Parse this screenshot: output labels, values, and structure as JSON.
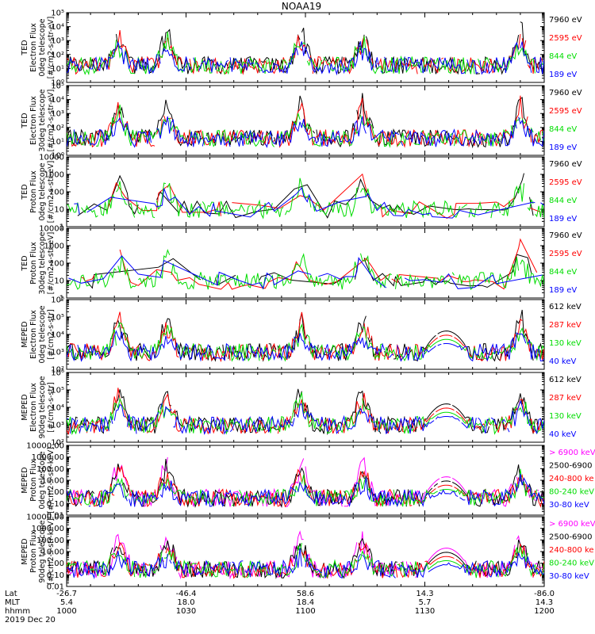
{
  "chart_data": {
    "title": "NOAA19",
    "type": "line",
    "footer": {
      "rows": [
        {
          "label": "Lat",
          "values": [
            "-26.7",
            "-46.4",
            "58.6",
            "14.3",
            "-86.0"
          ]
        },
        {
          "label": "MLT",
          "values": [
            "5.4",
            "18.0",
            "18.4",
            "5.7",
            "14.3"
          ]
        },
        {
          "label": "hhmm",
          "values": [
            "1000",
            "1030",
            "1100",
            "1130",
            "1200"
          ]
        }
      ],
      "date": "2019 Dec 20"
    },
    "panels": [
      {
        "ylabel": [
          "TED",
          "Electron Flux",
          "0deg telescope",
          "[#/cm2-s-str-eV]"
        ],
        "scale": "log",
        "ylim": [
          1,
          100000
        ],
        "ticks": [
          "10⁰",
          "10¹",
          "10²",
          "10³",
          "10⁴",
          "10⁵"
        ],
        "legend": [
          {
            "label": "7960 eV",
            "color": "#000000"
          },
          {
            "label": "2595 eV",
            "color": "#ff0000"
          },
          {
            "label": "844 eV",
            "color": "#00dd00"
          },
          {
            "label": "189 eV",
            "color": "#0000ff"
          }
        ]
      },
      {
        "ylabel": [
          "TED",
          "Electron Flux",
          "30deg telescope",
          "[#/cm2-s-str-eV]"
        ],
        "scale": "log",
        "ylim": [
          1,
          100000
        ],
        "ticks": [
          "10⁰",
          "10¹",
          "10²",
          "10³",
          "10⁴",
          "10⁵"
        ],
        "legend": [
          {
            "label": "7960 eV",
            "color": "#000000"
          },
          {
            "label": "2595 eV",
            "color": "#ff0000"
          },
          {
            "label": "844 eV",
            "color": "#00dd00"
          },
          {
            "label": "189 eV",
            "color": "#0000ff"
          }
        ]
      },
      {
        "ylabel": [
          "TED",
          "Proton Flux",
          "0deg telescope",
          "[#/cm2-s-str-eV]"
        ],
        "scale": "log",
        "ylim": [
          1,
          10000
        ],
        "ticks": [
          "1",
          "10",
          "100",
          "1000",
          "10000"
        ],
        "legend": [
          {
            "label": "7960 eV",
            "color": "#000000"
          },
          {
            "label": "2595 eV",
            "color": "#ff0000"
          },
          {
            "label": "844 eV",
            "color": "#00dd00"
          },
          {
            "label": "189 eV",
            "color": "#0000ff"
          }
        ]
      },
      {
        "ylabel": [
          "TED",
          "Proton Flux",
          "30deg telescope",
          "[#/cm2-s-str-eV]"
        ],
        "scale": "log",
        "ylim": [
          1,
          10000
        ],
        "ticks": [
          "1",
          "10",
          "100",
          "1000",
          "10000"
        ],
        "legend": [
          {
            "label": "7960 eV",
            "color": "#000000"
          },
          {
            "label": "2595 eV",
            "color": "#ff0000"
          },
          {
            "label": "844 eV",
            "color": "#00dd00"
          },
          {
            "label": "189 eV",
            "color": "#0000ff"
          }
        ]
      },
      {
        "ylabel": [
          "MEPED",
          "Electron Flux",
          "0deg telescope",
          "[#/cm2-s-str]"
        ],
        "scale": "log",
        "ylim": [
          100,
          1000000
        ],
        "ticks": [
          "10²",
          "10³",
          "10⁴",
          "10⁵",
          "10⁶"
        ],
        "legend": [
          {
            "label": "612 keV",
            "color": "#000000"
          },
          {
            "label": "287 keV",
            "color": "#ff0000"
          },
          {
            "label": "130 keV",
            "color": "#00dd00"
          },
          {
            "label": "40 keV",
            "color": "#0000ff"
          }
        ]
      },
      {
        "ylabel": [
          "MEPED",
          "Electron Flux",
          "90deg telescope",
          "[#/cm2-s-str]"
        ],
        "scale": "log",
        "ylim": [
          100,
          1000000
        ],
        "ticks": [
          "10²",
          "10³",
          "10⁴",
          "10⁵",
          "10⁶"
        ],
        "legend": [
          {
            "label": "612 keV",
            "color": "#000000"
          },
          {
            "label": "287 keV",
            "color": "#ff0000"
          },
          {
            "label": "130 keV",
            "color": "#00dd00"
          },
          {
            "label": "40 keV",
            "color": "#0000ff"
          }
        ]
      },
      {
        "ylabel": [
          "MEPED",
          "Proton Flux",
          "0deg telescope",
          "[#/cm2-s-str-keV]"
        ],
        "scale": "log",
        "ylim": [
          0.01,
          10000
        ],
        "ticks": [
          "0.01",
          "0.10",
          "1.00",
          "10.00",
          "100.00",
          "1000.00",
          "10000.00"
        ],
        "legend": [
          {
            "label": "> 6900 keV",
            "color": "#ff00ff"
          },
          {
            "label": "2500-6900",
            "color": "#000000"
          },
          {
            "label": "240-800 ke",
            "color": "#ff0000"
          },
          {
            "label": "80-240 keV",
            "color": "#00dd00"
          },
          {
            "label": "30-80 keV",
            "color": "#0000ff"
          }
        ]
      },
      {
        "ylabel": [
          "MEPED",
          "Proton Flux",
          "90deg telescope",
          "[#/cm2-s-str-keV]"
        ],
        "scale": "log",
        "ylim": [
          0.01,
          10000
        ],
        "ticks": [
          "0.01",
          "0.10",
          "1.00",
          "10.00",
          "100.00",
          "1000.00",
          "10000.00"
        ],
        "legend": [
          {
            "label": "> 6900 keV",
            "color": "#ff00ff"
          },
          {
            "label": "2500-6900",
            "color": "#000000"
          },
          {
            "label": "240-800 ke",
            "color": "#ff0000"
          },
          {
            "label": "80-240 keV",
            "color": "#00dd00"
          },
          {
            "label": "30-80 keV",
            "color": "#0000ff"
          }
        ]
      }
    ]
  }
}
